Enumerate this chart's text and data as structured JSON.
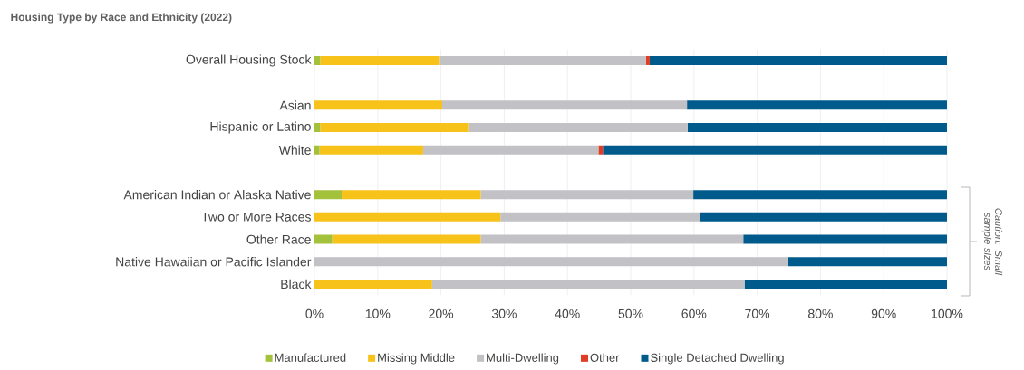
{
  "chart_data": {
    "type": "bar",
    "orientation": "horizontal",
    "stacked": true,
    "title": "Housing Type by Race and Ethnicity (2022)",
    "categories": [
      "Overall Housing Stock",
      null,
      "Asian",
      "Hispanic or Latino",
      "White",
      null,
      "American Indian or Alaska Native",
      "Two or More Races",
      "Other Race",
      "Native Hawaiian or Pacific Islander",
      "Black"
    ],
    "series": [
      {
        "name": "Manufactured",
        "color": "#a4c13c",
        "values": [
          0.9,
          null,
          0,
          0.9,
          0.8,
          null,
          4.3,
          0,
          2.8,
          0,
          0
        ]
      },
      {
        "name": "Missing Middle",
        "color": "#f7c31a",
        "values": [
          18.8,
          null,
          20.2,
          23.4,
          16.4,
          null,
          22.0,
          29.4,
          23.5,
          0,
          18.6
        ]
      },
      {
        "name": "Multi-Dwelling",
        "color": "#c1c1c6",
        "values": [
          32.7,
          null,
          38.7,
          34.7,
          27.7,
          null,
          33.6,
          31.6,
          41.5,
          74.9,
          49.4
        ]
      },
      {
        "name": "Other",
        "color": "#e03c26",
        "values": [
          0.6,
          null,
          0,
          0,
          0.7,
          null,
          0,
          0,
          0,
          0,
          0
        ]
      },
      {
        "name": "Single Detached Dwelling",
        "color": "#005a8c",
        "values": [
          47.0,
          null,
          41.1,
          41.0,
          54.4,
          null,
          40.1,
          39.0,
          32.2,
          25.1,
          32.0
        ]
      }
    ],
    "xlim": [
      0,
      100
    ],
    "xticks": [
      {
        "value": 0,
        "label": "0%"
      },
      {
        "value": 10,
        "label": "10%"
      },
      {
        "value": 20,
        "label": "20%"
      },
      {
        "value": 30,
        "label": "30%"
      },
      {
        "value": 40,
        "label": "40%"
      },
      {
        "value": 50,
        "label": "50%"
      },
      {
        "value": 60,
        "label": "60%"
      },
      {
        "value": 70,
        "label": "70%"
      },
      {
        "value": 80,
        "label": "80%"
      },
      {
        "value": 90,
        "label": "90%"
      },
      {
        "value": 100,
        "label": "100%"
      }
    ],
    "grid": "x",
    "legend": "bottom",
    "annotations": [
      "Caution: Small sample sizes"
    ]
  }
}
